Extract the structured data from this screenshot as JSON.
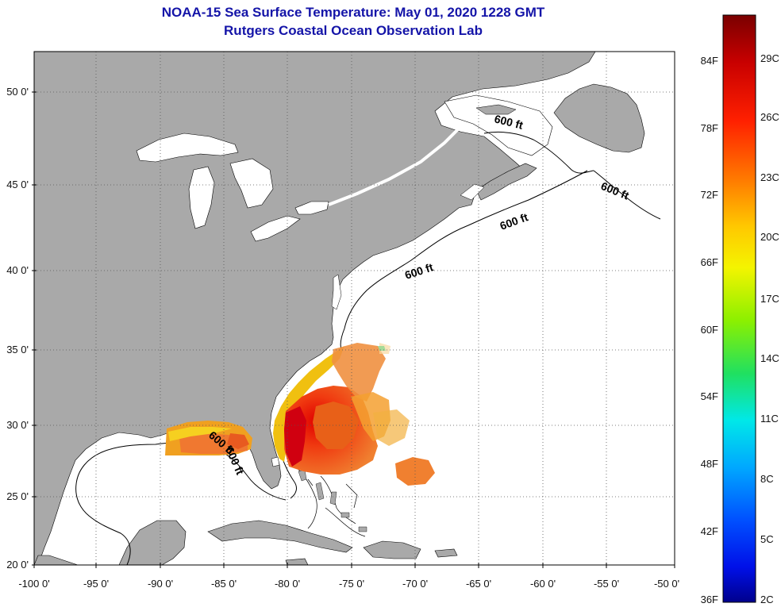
{
  "title": {
    "line1": "NOAA-15 Sea Surface Temperature:  May 01, 2020 1228 GMT",
    "line2": "Rutgers Coastal Ocean Observation Lab"
  },
  "axes": {
    "lat_labels": [
      "50 0'",
      "45 0'",
      "40 0'",
      "35 0'",
      "30 0'",
      "25 0'",
      "20 0'"
    ],
    "lon_labels": [
      "-100 0'",
      "-95 0'",
      "-90 0'",
      "-85 0'",
      "-80 0'",
      "-75 0'",
      "-70 0'",
      "-65 0'",
      "-60 0'",
      "-55 0'",
      "-50 0'"
    ]
  },
  "contour": {
    "label": "600 ft",
    "count": 6
  },
  "colorbar": {
    "fahrenheit": [
      "84F",
      "78F",
      "72F",
      "66F",
      "60F",
      "54F",
      "48F",
      "42F",
      "36F"
    ],
    "celsius": [
      "29C",
      "26C",
      "23C",
      "20C",
      "17C",
      "14C",
      "11C",
      "8C",
      "5C",
      "2C"
    ],
    "colors": [
      "#7a0000",
      "#c80000",
      "#ff2000",
      "#ff7a00",
      "#ffc800",
      "#f4f400",
      "#8cf000",
      "#20e060",
      "#00e8e8",
      "#00a8ff",
      "#0050ff",
      "#0010e8",
      "#00008c"
    ]
  },
  "map": {
    "land_color": "#a9a9a9",
    "ocean_color": "#ffffff",
    "grid_color": "#444444"
  }
}
